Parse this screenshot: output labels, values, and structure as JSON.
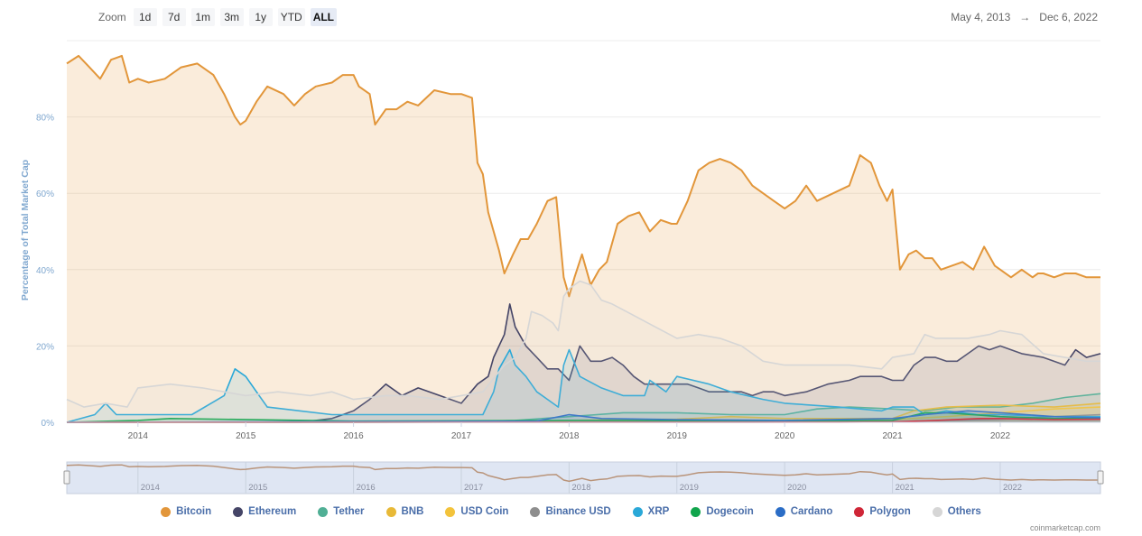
{
  "zoom": {
    "label": "Zoom",
    "buttons": [
      "1d",
      "7d",
      "1m",
      "3m",
      "1y",
      "YTD",
      "ALL"
    ],
    "active": "ALL"
  },
  "range": {
    "from": "May 4, 2013",
    "arrow": "→",
    "to": "Dec 6, 2022"
  },
  "credit": "coinmarketcap.com",
  "chart_data": {
    "type": "area",
    "title": "",
    "ylabel": "Percentage of Total Market Cap",
    "xlabel": "",
    "xlim": [
      2013.34,
      2022.93
    ],
    "ylim": [
      0,
      100
    ],
    "y_ticks": [
      0,
      20,
      40,
      60,
      80
    ],
    "y_tick_labels": [
      "0%",
      "20%",
      "40%",
      "60%",
      "80%"
    ],
    "x_ticks": [
      2014,
      2015,
      2016,
      2017,
      2018,
      2019,
      2020,
      2021,
      2022
    ],
    "x_tick_labels": [
      "2014",
      "2015",
      "2016",
      "2017",
      "2018",
      "2019",
      "2020",
      "2021",
      "2022"
    ],
    "grid": true,
    "legend_position": "bottom",
    "navigator": true,
    "series": [
      {
        "name": "Bitcoin",
        "color": "#e2963a",
        "x": [
          2013.34,
          2013.45,
          2013.55,
          2013.65,
          2013.75,
          2013.85,
          2013.92,
          2014.0,
          2014.1,
          2014.25,
          2014.4,
          2014.55,
          2014.7,
          2014.8,
          2014.9,
          2014.95,
          2015.0,
          2015.1,
          2015.2,
          2015.35,
          2015.45,
          2015.55,
          2015.65,
          2015.8,
          2015.9,
          2016.0,
          2016.05,
          2016.15,
          2016.2,
          2016.3,
          2016.4,
          2016.5,
          2016.6,
          2016.75,
          2016.9,
          2017.0,
          2017.1,
          2017.15,
          2017.2,
          2017.25,
          2017.35,
          2017.4,
          2017.48,
          2017.55,
          2017.62,
          2017.7,
          2017.8,
          2017.88,
          2017.95,
          2018.0,
          2018.05,
          2018.12,
          2018.2,
          2018.28,
          2018.35,
          2018.45,
          2018.55,
          2018.65,
          2018.75,
          2018.85,
          2018.95,
          2019.0,
          2019.1,
          2019.2,
          2019.3,
          2019.4,
          2019.5,
          2019.6,
          2019.7,
          2019.8,
          2019.9,
          2020.0,
          2020.1,
          2020.2,
          2020.3,
          2020.45,
          2020.6,
          2020.7,
          2020.8,
          2020.88,
          2020.95,
          2021.0,
          2021.07,
          2021.15,
          2021.22,
          2021.3,
          2021.37,
          2021.45,
          2021.55,
          2021.65,
          2021.75,
          2021.85,
          2021.95,
          2022.0,
          2022.1,
          2022.2,
          2022.3,
          2022.35,
          2022.4,
          2022.5,
          2022.6,
          2022.7,
          2022.8,
          2022.93
        ],
        "values": [
          94,
          96,
          93,
          90,
          95,
          96,
          89,
          90,
          89,
          90,
          93,
          94,
          91,
          86,
          80,
          78,
          79,
          84,
          88,
          86,
          83,
          86,
          88,
          89,
          91,
          91,
          88,
          86,
          78,
          82,
          82,
          84,
          83,
          87,
          86,
          86,
          85,
          68,
          65,
          55,
          45,
          39,
          44,
          48,
          48,
          52,
          58,
          59,
          38,
          33,
          38,
          44,
          36,
          40,
          42,
          52,
          54,
          55,
          50,
          53,
          52,
          52,
          58,
          66,
          68,
          69,
          68,
          66,
          62,
          60,
          58,
          56,
          58,
          62,
          58,
          60,
          62,
          70,
          68,
          62,
          58,
          61,
          40,
          44,
          45,
          43,
          43,
          40,
          41,
          42,
          40,
          46,
          41,
          40,
          38,
          40,
          38,
          39,
          39,
          38,
          39,
          39,
          38,
          38
        ]
      },
      {
        "name": "Ethereum",
        "color": "#454567",
        "x": [
          2013.34,
          2014.0,
          2015.0,
          2015.5,
          2015.8,
          2016.0,
          2016.15,
          2016.3,
          2016.45,
          2016.6,
          2016.8,
          2017.0,
          2017.15,
          2017.25,
          2017.3,
          2017.4,
          2017.45,
          2017.5,
          2017.6,
          2017.7,
          2017.8,
          2017.9,
          2018.0,
          2018.1,
          2018.2,
          2018.3,
          2018.4,
          2018.5,
          2018.6,
          2018.7,
          2018.8,
          2018.9,
          2019.0,
          2019.1,
          2019.2,
          2019.3,
          2019.4,
          2019.5,
          2019.6,
          2019.7,
          2019.8,
          2019.9,
          2020.0,
          2020.2,
          2020.4,
          2020.6,
          2020.7,
          2020.8,
          2020.9,
          2021.0,
          2021.1,
          2021.2,
          2021.3,
          2021.4,
          2021.5,
          2021.6,
          2021.7,
          2021.8,
          2021.9,
          2022.0,
          2022.2,
          2022.4,
          2022.6,
          2022.7,
          2022.8,
          2022.93
        ],
        "values": [
          0,
          0,
          0,
          0,
          1,
          3,
          6,
          10,
          7,
          9,
          7,
          5,
          10,
          12,
          17,
          23,
          31,
          25,
          20,
          17,
          14,
          14,
          11,
          20,
          16,
          16,
          17,
          15,
          12,
          10,
          10,
          10,
          10,
          10,
          9,
          8,
          8,
          8,
          8,
          7,
          8,
          8,
          7,
          8,
          10,
          11,
          12,
          12,
          12,
          11,
          11,
          15,
          17,
          17,
          16,
          16,
          18,
          20,
          19,
          20,
          18,
          17,
          15,
          19,
          17,
          18
        ]
      },
      {
        "name": "Tether",
        "color": "#50af95",
        "x": [
          2013.34,
          2016.0,
          2017.0,
          2017.5,
          2018.0,
          2018.5,
          2019.0,
          2019.5,
          2020.0,
          2020.3,
          2020.6,
          2021.0,
          2021.3,
          2021.6,
          2022.0,
          2022.3,
          2022.6,
          2022.93
        ],
        "values": [
          0,
          0,
          0.1,
          0.5,
          1.5,
          2.5,
          2.5,
          2,
          2,
          3.5,
          4,
          3.5,
          3,
          4,
          4,
          5,
          6.5,
          7.5
        ]
      },
      {
        "name": "BNB",
        "color": "#e8b937",
        "x": [
          2013.34,
          2017.5,
          2018.0,
          2018.5,
          2019.0,
          2019.5,
          2020.0,
          2020.5,
          2021.0,
          2021.2,
          2021.5,
          2022.0,
          2022.5,
          2022.93
        ],
        "values": [
          0,
          0.1,
          0.5,
          0.7,
          0.8,
          1.5,
          1,
          1,
          1,
          3,
          4,
          4.5,
          4,
          5
        ]
      },
      {
        "name": "USD Coin",
        "color": "#f3c33b",
        "x": [
          2013.34,
          2018.8,
          2019.5,
          2020.5,
          2021.0,
          2021.5,
          2022.0,
          2022.5,
          2022.93
        ],
        "values": [
          0,
          0.1,
          0.2,
          0.5,
          0.7,
          1.5,
          2.5,
          3.5,
          4
        ]
      },
      {
        "name": "Binance USD",
        "color": "#8e8e8e",
        "x": [
          2013.34,
          2019.7,
          2020.5,
          2021.0,
          2021.5,
          2022.0,
          2022.5,
          2022.93
        ],
        "values": [
          0,
          0.05,
          0.1,
          0.2,
          0.5,
          0.8,
          1.5,
          2
        ]
      },
      {
        "name": "XRP",
        "color": "#2aa8d8",
        "x": [
          2013.34,
          2013.6,
          2013.7,
          2013.8,
          2014.0,
          2014.5,
          2014.8,
          2014.9,
          2015.0,
          2015.1,
          2015.2,
          2015.5,
          2015.8,
          2016.0,
          2016.5,
          2017.0,
          2017.2,
          2017.3,
          2017.35,
          2017.45,
          2017.5,
          2017.6,
          2017.7,
          2017.8,
          2017.9,
          2017.95,
          2018.0,
          2018.1,
          2018.3,
          2018.5,
          2018.7,
          2018.75,
          2018.8,
          2018.9,
          2019.0,
          2019.3,
          2019.5,
          2019.8,
          2020.0,
          2020.5,
          2020.9,
          2021.0,
          2021.2,
          2021.3,
          2021.5,
          2021.8,
          2022.0,
          2022.5,
          2022.93
        ],
        "values": [
          0,
          2,
          5,
          2,
          2,
          2,
          7,
          14,
          12,
          8,
          4,
          3,
          2,
          2,
          2,
          2,
          2,
          8,
          14,
          19,
          15,
          12,
          8,
          6,
          4,
          15,
          19,
          12,
          9,
          7,
          7,
          11,
          10,
          8,
          12,
          10,
          8,
          6,
          5,
          4,
          3,
          4,
          4,
          2,
          3,
          2,
          2,
          1.5,
          1.5
        ]
      },
      {
        "name": "Dogecoin",
        "color": "#11a54c",
        "x": [
          2013.34,
          2014.0,
          2014.3,
          2016.0,
          2018.0,
          2020.0,
          2021.0,
          2021.3,
          2021.5,
          2022.0,
          2022.5,
          2022.93
        ],
        "values": [
          0,
          0.5,
          1,
          0.3,
          0.5,
          0.3,
          0.5,
          2.5,
          2.5,
          1.5,
          1,
          1
        ]
      },
      {
        "name": "Cardano",
        "color": "#2b6dc6",
        "x": [
          2013.34,
          2017.7,
          2018.0,
          2018.3,
          2019.0,
          2020.0,
          2021.0,
          2021.3,
          2021.7,
          2022.0,
          2022.5,
          2022.93
        ],
        "values": [
          0,
          0.3,
          2,
          1,
          0.7,
          0.5,
          1,
          2,
          3,
          2.5,
          1.5,
          1.2
        ]
      },
      {
        "name": "Polygon",
        "color": "#cf2637",
        "x": [
          2013.34,
          2019.5,
          2020.5,
          2021.0,
          2021.4,
          2021.8,
          2022.0,
          2022.5,
          2022.93
        ],
        "values": [
          0,
          0.05,
          0.05,
          0.1,
          0.5,
          1,
          1,
          0.7,
          0.8
        ]
      },
      {
        "name": "Others",
        "color": "#d6d6d6",
        "x": [
          2013.34,
          2013.5,
          2013.7,
          2013.9,
          2014.0,
          2014.3,
          2014.6,
          2014.8,
          2015.0,
          2015.3,
          2015.6,
          2015.8,
          2016.0,
          2016.3,
          2016.5,
          2016.8,
          2017.0,
          2017.2,
          2017.4,
          2017.5,
          2017.6,
          2017.65,
          2017.75,
          2017.85,
          2017.9,
          2017.95,
          2018.0,
          2018.1,
          2018.2,
          2018.3,
          2018.4,
          2018.6,
          2018.8,
          2019.0,
          2019.2,
          2019.4,
          2019.6,
          2019.8,
          2020.0,
          2020.3,
          2020.6,
          2020.9,
          2021.0,
          2021.2,
          2021.3,
          2021.4,
          2021.5,
          2021.7,
          2021.9,
          2022.0,
          2022.2,
          2022.4,
          2022.6,
          2022.8,
          2022.93
        ],
        "values": [
          6,
          4,
          5,
          4,
          9,
          10,
          9,
          8,
          7,
          8,
          7,
          8,
          6,
          7,
          7,
          6,
          7,
          8,
          15,
          17,
          22,
          29,
          28,
          26,
          24,
          33,
          35,
          37,
          36,
          32,
          31,
          28,
          25,
          22,
          23,
          22,
          20,
          16,
          15,
          15,
          15,
          14,
          17,
          18,
          23,
          22,
          22,
          22,
          23,
          24,
          23,
          18,
          17,
          16,
          16
        ]
      }
    ]
  }
}
